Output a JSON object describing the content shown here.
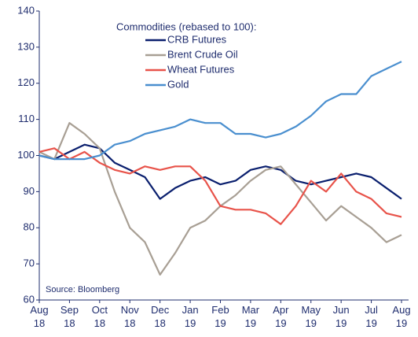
{
  "chart_data": {
    "type": "line",
    "legend_title": "Commodities (rebased to 100):",
    "source": "Source: Bloomberg",
    "categories": [
      "Aug 18",
      null,
      "Sep 18",
      null,
      "Oct 18",
      null,
      "Nov 18",
      null,
      "Dec 18",
      null,
      "Jan 19",
      null,
      "Feb 19",
      null,
      "Mar 19",
      null,
      "Apr 19",
      null,
      "May 19",
      null,
      "Jun 19",
      null,
      "Jul 19",
      null,
      "Aug 19"
    ],
    "series": [
      {
        "name": "CRB Futures",
        "color": "#0a1f6e",
        "values": [
          100,
          99,
          101,
          103,
          102,
          98,
          96,
          94,
          88,
          91,
          93,
          94,
          92,
          93,
          96,
          97,
          96,
          93,
          92,
          93,
          94,
          95,
          94,
          91,
          88
        ]
      },
      {
        "name": "Brent Crude Oil",
        "color": "#a89f94",
        "values": [
          101,
          99,
          109,
          106,
          102,
          90,
          80,
          76,
          67,
          73,
          80,
          82,
          86,
          89,
          93,
          96,
          97,
          92,
          87,
          82,
          86,
          83,
          80,
          76,
          78
        ]
      },
      {
        "name": "Wheat Futures",
        "color": "#e8534a",
        "values": [
          101,
          102,
          99,
          101,
          98,
          96,
          95,
          97,
          96,
          97,
          97,
          93,
          86,
          85,
          85,
          84,
          81,
          86,
          93,
          90,
          95,
          90,
          88,
          84,
          83
        ]
      },
      {
        "name": "Gold",
        "color": "#4a8fcf",
        "values": [
          100,
          99,
          99,
          99,
          100,
          103,
          104,
          106,
          107,
          108,
          110,
          109,
          109,
          106,
          106,
          105,
          106,
          108,
          111,
          115,
          117,
          117,
          122,
          124,
          126
        ]
      }
    ],
    "ylim": [
      60,
      140
    ],
    "yticks": [
      60,
      70,
      80,
      90,
      100,
      110,
      120,
      130,
      140
    ],
    "grid": false
  }
}
